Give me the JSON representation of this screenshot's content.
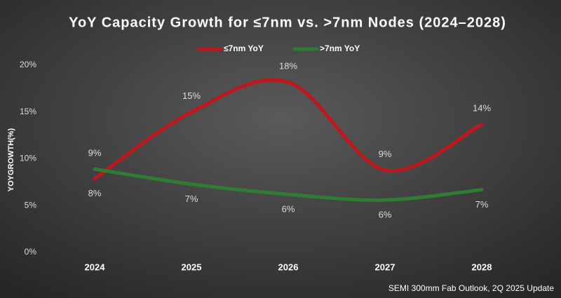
{
  "chart_data": {
    "type": "line",
    "title": "YoY Capacity Growth for ≤7nm vs. >7nm Nodes (2024–2028)",
    "y_label": "YOYGROWTH(%)",
    "source": "SEMI 300mm Fab Outlook,  2Q 2025 Update",
    "categories": [
      "2024",
      "2025",
      "2026",
      "2027",
      "2028"
    ],
    "series": [
      {
        "name": "≤7nm YoY",
        "color": "#c0171c",
        "values": [
          7.9,
          15,
          18.2,
          8.8,
          13.7
        ],
        "value_labels": [
          "8%",
          "15%",
          "18%",
          "9%",
          "14%"
        ]
      },
      {
        "name": ">7nm YoY",
        "color": "#2e7d32",
        "values": [
          8.9,
          7.3,
          6.2,
          5.6,
          6.7
        ],
        "value_labels": [
          "9%",
          "7%",
          "6%",
          "6%",
          "7%"
        ]
      }
    ],
    "ylim": [
      0,
      20
    ],
    "yticks": [
      {
        "value": 0,
        "label": "0%"
      },
      {
        "value": 5,
        "label": "5%"
      },
      {
        "value": 10,
        "label": "10%"
      },
      {
        "value": 15,
        "label": "15%"
      },
      {
        "value": 20,
        "label": "20%"
      }
    ],
    "grid": false,
    "smooth": true,
    "legend": "top"
  }
}
